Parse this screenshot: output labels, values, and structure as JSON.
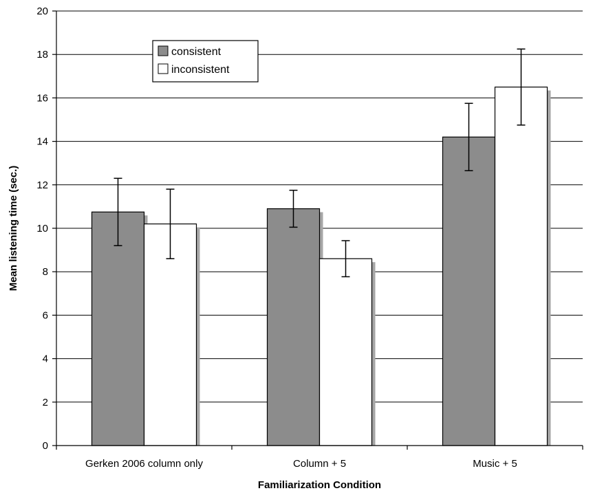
{
  "chart_data": {
    "type": "bar",
    "title": "",
    "xlabel": "Familiarization Condition",
    "ylabel": "Mean listening time (sec.)",
    "ylim": [
      0,
      20
    ],
    "yticks": [
      0,
      2,
      4,
      6,
      8,
      10,
      12,
      14,
      16,
      18,
      20
    ],
    "categories": [
      "Gerken 2006 column only",
      "Column + 5",
      "Music + 5"
    ],
    "series": [
      {
        "name": "consistent",
        "values": [
          10.75,
          10.9,
          14.2
        ],
        "error": [
          1.55,
          0.85,
          1.55
        ],
        "color": "#8c8c8c"
      },
      {
        "name": "inconsistent",
        "values": [
          10.2,
          8.6,
          16.5
        ],
        "error": [
          1.6,
          0.83,
          1.75
        ],
        "color": "#ffffff"
      }
    ],
    "grid": true,
    "legend": "top-left",
    "shadow_color": "#a6a6a6"
  }
}
